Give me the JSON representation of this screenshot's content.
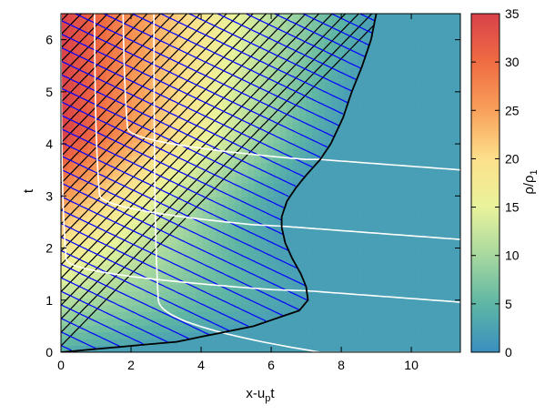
{
  "chart_data": {
    "type": "heatmap",
    "title": "",
    "xlabel": {
      "main": "x-u",
      "sub": "p",
      "tail": "t"
    },
    "ylabel": "t",
    "xlim": [
      0,
      11.4
    ],
    "ylim": [
      0,
      6.5
    ],
    "x_ticks": [
      0,
      2,
      4,
      6,
      8,
      10
    ],
    "y_ticks": [
      0,
      1,
      2,
      3,
      4,
      5,
      6
    ],
    "grid": false,
    "colorbar": {
      "label": {
        "main": "ρ/ρ",
        "sub": "1"
      },
      "range": [
        0,
        35
      ],
      "ticks": [
        0,
        5,
        10,
        15,
        20,
        25,
        30,
        35
      ],
      "colormap": [
        "#3a8fc0",
        "#5fb6a4",
        "#a7d89f",
        "#e9f39b",
        "#fde08b",
        "#f9a15a",
        "#ef6c43",
        "#d9414a"
      ]
    },
    "background_value": 2,
    "shock_boundary": {
      "t": [
        0,
        0.2,
        0.5,
        0.8,
        1.0,
        1.25,
        1.5,
        1.8,
        2.1,
        2.4,
        2.6,
        2.9,
        3.15,
        3.4,
        3.7,
        4.0,
        4.5,
        5.0,
        5.5,
        6.0,
        6.5
      ],
      "x_u_pt": [
        0,
        3.3,
        5.5,
        6.8,
        7.05,
        7.0,
        6.85,
        6.6,
        6.4,
        6.3,
        6.3,
        6.45,
        6.7,
        7.0,
        7.4,
        7.7,
        8.05,
        8.3,
        8.6,
        8.85,
        9.0
      ]
    },
    "characteristic_slope_black": 1.45,
    "characteristic_slope_blue": -0.32,
    "characteristic_spacing_t": 0.26,
    "particle_paths": [
      {
        "start_x_u_pt": 0.0,
        "end_t": 1.18
      },
      {
        "start_x_u_pt": 0.95,
        "end_t": 2.42
      },
      {
        "start_x_u_pt": 1.75,
        "end_t": 3.7
      },
      {
        "start_x_u_pt": 2.65,
        "end_t": 0.0
      }
    ],
    "series_colors": {
      "characteristics_black": "#000000",
      "characteristics_blue": "#0000ff",
      "particle_paths": "#ffffff",
      "shock": "#000000"
    }
  }
}
